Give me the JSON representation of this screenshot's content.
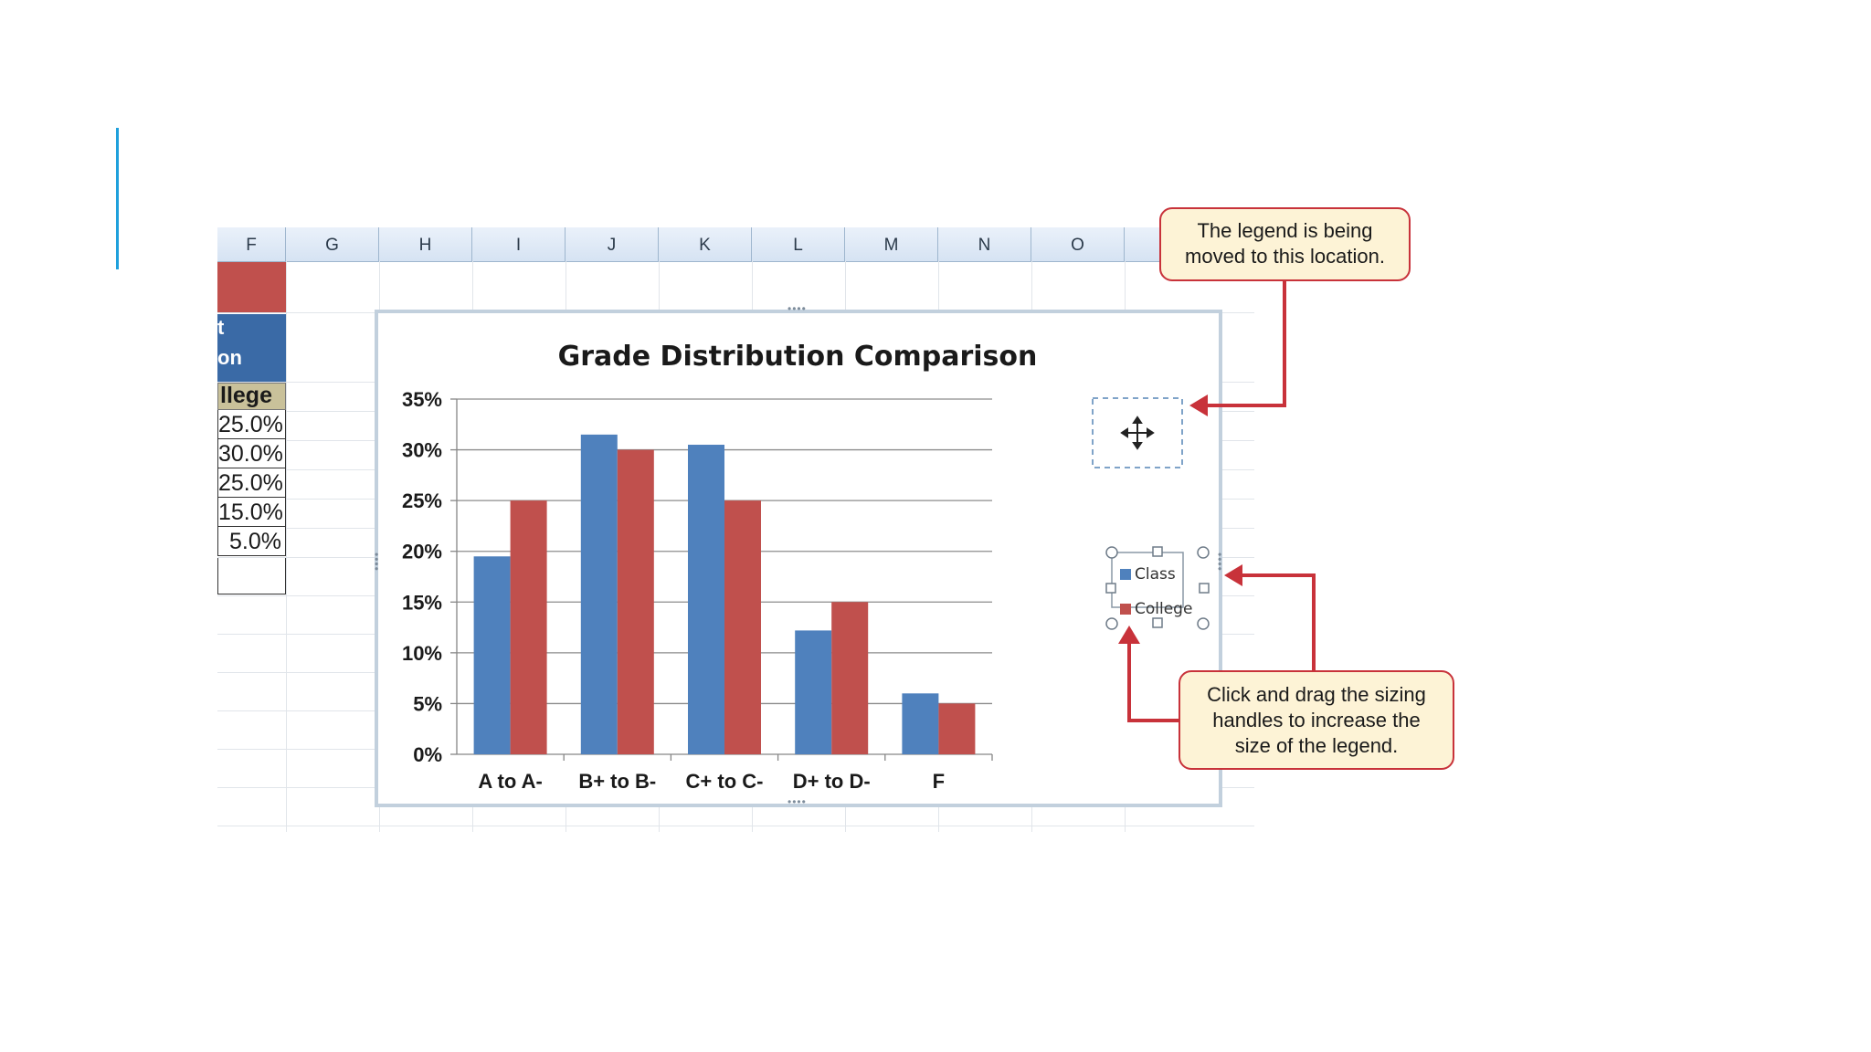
{
  "sheet": {
    "columns": [
      "F",
      "G",
      "H",
      "I",
      "J",
      "K",
      "L",
      "M",
      "N",
      "O"
    ],
    "table": {
      "header_line_1": "t",
      "header_line_2": "on",
      "header_college": "llege",
      "values": [
        "25.0%",
        "30.0%",
        "25.0%",
        "15.0%",
        "5.0%"
      ]
    }
  },
  "chart_data": {
    "type": "bar",
    "title": "Grade Distribution  Comparison",
    "categories": [
      "A to A-",
      "B+ to B-",
      "C+ to C-",
      "D+ to D-",
      "F"
    ],
    "series": [
      {
        "name": "Class",
        "values": [
          19.5,
          31.5,
          30.5,
          12.2,
          6.0
        ],
        "color": "#4f81bd"
      },
      {
        "name": "College",
        "values": [
          25,
          30,
          25,
          15,
          5
        ],
        "color": "#c0504d"
      }
    ],
    "ylim": [
      0,
      35
    ],
    "yticks": [
      "0%",
      "5%",
      "10%",
      "15%",
      "20%",
      "25%",
      "30%",
      "35%"
    ],
    "grid": true,
    "legend_position": "right"
  },
  "callouts": {
    "top_lines": [
      "The legend is being",
      "moved to this location."
    ],
    "bottom_lines": [
      "Click and drag the sizing",
      "handles to increase the",
      "size of the legend."
    ]
  },
  "icons": {
    "move_cursor": "move-cursor-icon"
  }
}
